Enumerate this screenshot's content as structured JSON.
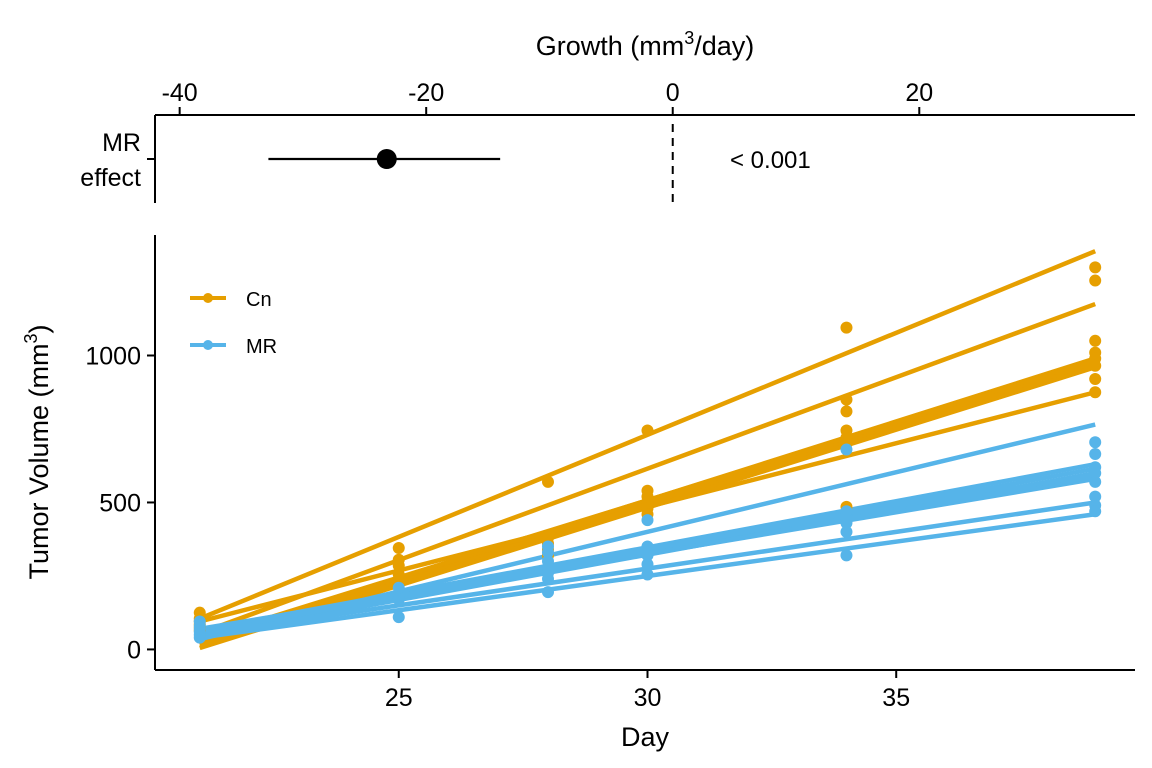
{
  "chart_data": [
    {
      "panel": "forest",
      "type": "scatter",
      "title": "",
      "xlabel": "Growth (mm³/day)",
      "xlabel_parts": {
        "pre": "Growth (mm",
        "sup": "3",
        "post": "/day)"
      },
      "xlim": [
        -42,
        37.5
      ],
      "xticks": [
        -40,
        -20,
        0,
        20
      ],
      "tick_labels": [
        "-40",
        "-20",
        "0",
        "20"
      ],
      "reference_line_x": 0,
      "rows": [
        {
          "label_lines": [
            "MR",
            "effect"
          ],
          "estimate": -23.2,
          "ci_low": -32.8,
          "ci_high": -14.0,
          "p_text": "< 0.001"
        }
      ]
    },
    {
      "panel": "growth",
      "type": "line",
      "title": "",
      "xlabel": "Day",
      "ylabel": "Tumor Volume (mm³)",
      "ylabel_parts": {
        "pre": "Tumor Volume (mm",
        "sup": "3",
        "post": ")"
      },
      "xlim": [
        20.1,
        39.8
      ],
      "ylim": [
        -70,
        1410
      ],
      "xticks": [
        25,
        30,
        35
      ],
      "yticks": [
        0,
        500,
        1000
      ],
      "grid": false,
      "legend_position": "top-left",
      "series": [
        {
          "name": "Cn",
          "color": "#E69F00",
          "fit_lines": [
            {
              "x": [
                21,
                39
              ],
              "y": [
                105,
                1355
              ]
            },
            {
              "x": [
                21,
                39
              ],
              "y": [
                55,
                1175
              ]
            },
            {
              "x": [
                21,
                39
              ],
              "y": [
                25,
                990
              ]
            },
            {
              "x": [
                21,
                39
              ],
              "y": [
                35,
                980
              ]
            },
            {
              "x": [
                21,
                39
              ],
              "y": [
                15,
                970
              ]
            },
            {
              "x": [
                21,
                39
              ],
              "y": [
                5,
                960
              ]
            },
            {
              "x": [
                21,
                39
              ],
              "y": [
                95,
                875
              ]
            }
          ],
          "points": [
            [
              21,
              125
            ],
            [
              21,
              105
            ],
            [
              21,
              95
            ],
            [
              21,
              85
            ],
            [
              21,
              75
            ],
            [
              21,
              65
            ],
            [
              25,
              345
            ],
            [
              25,
              305
            ],
            [
              25,
              285
            ],
            [
              25,
              255
            ],
            [
              28,
              570
            ],
            [
              28,
              380
            ],
            [
              28,
              360
            ],
            [
              28,
              340
            ],
            [
              28,
              320
            ],
            [
              30,
              745
            ],
            [
              30,
              540
            ],
            [
              30,
              520
            ],
            [
              30,
              500
            ],
            [
              30,
              480
            ],
            [
              30,
              460
            ],
            [
              34,
              1095
            ],
            [
              34,
              850
            ],
            [
              34,
              810
            ],
            [
              34,
              745
            ],
            [
              34,
              720
            ],
            [
              34,
              700
            ],
            [
              34,
              485
            ],
            [
              39,
              1300
            ],
            [
              39,
              1255
            ],
            [
              39,
              1050
            ],
            [
              39,
              1010
            ],
            [
              39,
              990
            ],
            [
              39,
              965
            ],
            [
              39,
              920
            ],
            [
              39,
              875
            ]
          ]
        },
        {
          "name": "MR",
          "color": "#56B4E9",
          "fit_lines": [
            {
              "x": [
                21,
                39
              ],
              "y": [
                35,
                765
              ]
            },
            {
              "x": [
                21,
                39
              ],
              "y": [
                65,
                630
              ]
            },
            {
              "x": [
                21,
                39
              ],
              "y": [
                55,
                615
              ]
            },
            {
              "x": [
                21,
                39
              ],
              "y": [
                45,
                600
              ]
            },
            {
              "x": [
                21,
                39
              ],
              "y": [
                60,
                590
              ]
            },
            {
              "x": [
                21,
                39
              ],
              "y": [
                70,
                580
              ]
            },
            {
              "x": [
                21,
                39
              ],
              "y": [
                50,
                500
              ]
            },
            {
              "x": [
                21,
                39
              ],
              "y": [
                40,
                460
              ]
            }
          ],
          "points": [
            [
              21,
              95
            ],
            [
              21,
              80
            ],
            [
              21,
              70
            ],
            [
              21,
              60
            ],
            [
              21,
              50
            ],
            [
              21,
              40
            ],
            [
              25,
              110
            ],
            [
              25,
              190
            ],
            [
              25,
              210
            ],
            [
              25,
              170
            ],
            [
              28,
              195
            ],
            [
              28,
              240
            ],
            [
              28,
              260
            ],
            [
              28,
              280
            ],
            [
              28,
              300
            ],
            [
              28,
              330
            ],
            [
              28,
              350
            ],
            [
              30,
              255
            ],
            [
              30,
              290
            ],
            [
              30,
              320
            ],
            [
              30,
              350
            ],
            [
              30,
              440
            ],
            [
              34,
              320
            ],
            [
              34,
              400
            ],
            [
              34,
              430
            ],
            [
              34,
              450
            ],
            [
              34,
              470
            ],
            [
              34,
              680
            ],
            [
              39,
              705
            ],
            [
              39,
              665
            ],
            [
              39,
              620
            ],
            [
              39,
              600
            ],
            [
              39,
              570
            ],
            [
              39,
              520
            ],
            [
              39,
              490
            ],
            [
              39,
              470
            ]
          ]
        }
      ]
    }
  ]
}
